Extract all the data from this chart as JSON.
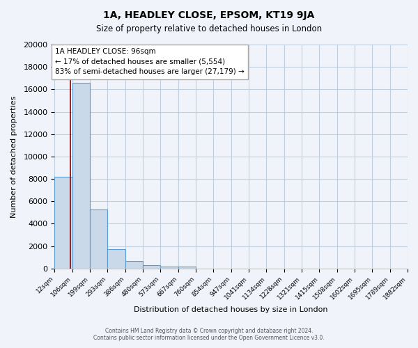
{
  "title": "1A, HEADLEY CLOSE, EPSOM, KT19 9JA",
  "subtitle": "Size of property relative to detached houses in London",
  "xlabel": "Distribution of detached houses by size in London",
  "ylabel": "Number of detached properties",
  "bin_labels": [
    "12sqm",
    "106sqm",
    "199sqm",
    "293sqm",
    "386sqm",
    "480sqm",
    "573sqm",
    "667sqm",
    "760sqm",
    "854sqm",
    "947sqm",
    "1041sqm",
    "1134sqm",
    "1228sqm",
    "1321sqm",
    "1415sqm",
    "1508sqm",
    "1602sqm",
    "1695sqm",
    "1789sqm",
    "1882sqm"
  ],
  "bin_edges": [
    12,
    106,
    199,
    293,
    386,
    480,
    573,
    667,
    760,
    854,
    947,
    1041,
    1134,
    1228,
    1321,
    1415,
    1508,
    1602,
    1695,
    1789,
    1882
  ],
  "bar_heights": [
    8200,
    16600,
    5300,
    1750,
    680,
    310,
    200,
    180,
    0,
    0,
    0,
    0,
    0,
    0,
    0,
    0,
    0,
    0,
    0,
    0
  ],
  "bar_color": "#c9d9ea",
  "bar_edge_color": "#5b9bd5",
  "grid_color": "#c0cfe0",
  "background_color": "#f0f4fa",
  "vline_x": 96,
  "vline_color": "#8b0000",
  "annotation_title": "1A HEADLEY CLOSE: 96sqm",
  "annotation_line1": "← 17% of detached houses are smaller (5,554)",
  "annotation_line2": "83% of semi-detached houses are larger (27,179) →",
  "annotation_box_color": "#ffffff",
  "annotation_box_edge": "#aaaaaa",
  "ylim": [
    0,
    20000
  ],
  "yticks": [
    0,
    2000,
    4000,
    6000,
    8000,
    10000,
    12000,
    14000,
    16000,
    18000,
    20000
  ],
  "footer_line1": "Contains HM Land Registry data © Crown copyright and database right 2024.",
  "footer_line2": "Contains public sector information licensed under the Open Government Licence v3.0."
}
